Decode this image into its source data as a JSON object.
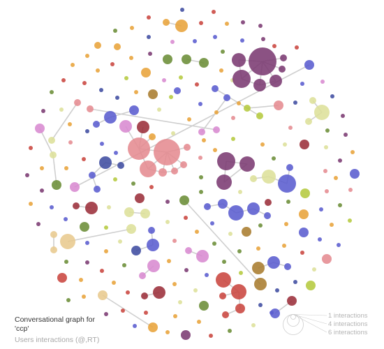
{
  "caption": {
    "title_line1": "Conversational graph for",
    "title_line2": "'ccp'",
    "subtitle": "Users interactions (@,RT)"
  },
  "legend": {
    "size_labels": [
      "1 interactions",
      "4 interactions",
      "6 interactions"
    ]
  },
  "colors": {
    "edge": "#cfcfcf",
    "legend_circle": "#cccccc"
  },
  "palette": [
    "#c9453f",
    "#e8a33a",
    "#7b3a72",
    "#6b8d37",
    "#5a5ccf",
    "#e58b91",
    "#d98ad4",
    "#dde09a",
    "#b5c93f",
    "#3f4ca0",
    "#d88ad0",
    "#a87c2f",
    "#9b2f3a",
    "#e8c98e"
  ]
}
